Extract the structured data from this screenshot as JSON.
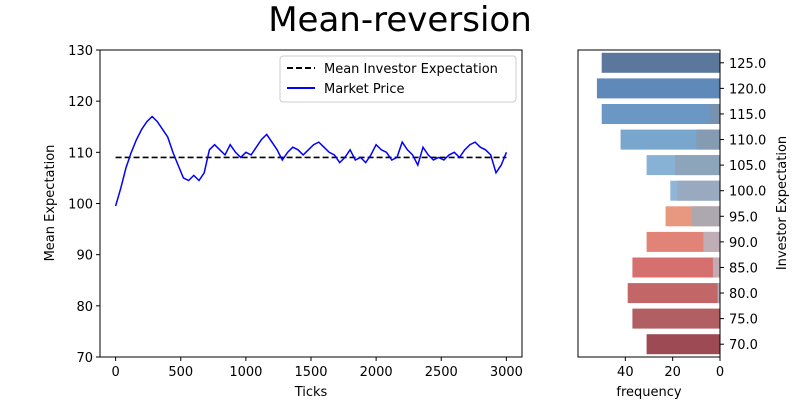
{
  "title": "Mean-reversion",
  "chart_data": [
    {
      "type": "line",
      "xlabel": "Ticks",
      "ylabel": "Mean Expectation",
      "xlim": [
        -120,
        3120
      ],
      "ylim": [
        70,
        130
      ],
      "xticks": [
        0,
        500,
        1000,
        1500,
        2000,
        2500,
        3000
      ],
      "yticks": [
        70,
        80,
        90,
        100,
        110,
        120,
        130
      ],
      "grid": false,
      "legend_position": "upper right",
      "series": [
        {
          "name": "Mean Investor Expectation",
          "style": "dashed",
          "color": "#000000",
          "x": [
            0,
            3000
          ],
          "y": [
            109,
            109
          ]
        },
        {
          "name": "Market Price",
          "style": "solid",
          "color": "#0000ff",
          "x": [
            0,
            40,
            80,
            120,
            160,
            200,
            240,
            280,
            320,
            360,
            400,
            440,
            480,
            520,
            560,
            600,
            640,
            680,
            720,
            760,
            800,
            840,
            880,
            920,
            960,
            1000,
            1040,
            1080,
            1120,
            1160,
            1200,
            1240,
            1280,
            1320,
            1360,
            1400,
            1440,
            1480,
            1520,
            1560,
            1600,
            1640,
            1680,
            1720,
            1760,
            1800,
            1840,
            1880,
            1920,
            1960,
            2000,
            2040,
            2080,
            2120,
            2160,
            2200,
            2240,
            2280,
            2320,
            2360,
            2400,
            2440,
            2480,
            2520,
            2560,
            2600,
            2640,
            2680,
            2720,
            2760,
            2800,
            2840,
            2880,
            2920,
            2960,
            3000
          ],
          "y": [
            99.5,
            103,
            107,
            110,
            112.5,
            114.5,
            116,
            117,
            116,
            114.5,
            113,
            110,
            107.5,
            105,
            104.5,
            105.5,
            104.5,
            106,
            110.5,
            111.5,
            110.5,
            109.5,
            111.5,
            110,
            109,
            110,
            109.5,
            111,
            112.5,
            113.5,
            112,
            110.5,
            108.5,
            110,
            111,
            110.5,
            109.5,
            110.5,
            111.5,
            112,
            111,
            110,
            109.5,
            108,
            109,
            110.5,
            108.5,
            109,
            108,
            109.5,
            111.5,
            110.5,
            110,
            108.5,
            109,
            112,
            110.5,
            109.5,
            107.5,
            111,
            109.5,
            108.5,
            109,
            108.5,
            109.5,
            110,
            109,
            110.5,
            111.5,
            112,
            111,
            110.5,
            109.5,
            106,
            107.5,
            110
          ]
        }
      ]
    },
    {
      "type": "bar",
      "orientation": "horizontal",
      "xlabel": "frequency",
      "ylabel": "Investor Expectation",
      "xlim": [
        60,
        0
      ],
      "xticks": [
        40,
        20,
        0
      ],
      "categories": [
        "70.0",
        "75.0",
        "80.0",
        "85.0",
        "90.0",
        "95.0",
        "100.0",
        "105.0",
        "110.0",
        "115.0",
        "120.0",
        "125.0"
      ],
      "series": [
        {
          "values": [
            31,
            37,
            39,
            37,
            31,
            23,
            21,
            31,
            42,
            50,
            52,
            50
          ],
          "colors": [
            "#9e4a55",
            "#b15f63",
            "#c26668",
            "#d6706e",
            "#e28378",
            "#e8987f",
            "#8fb6d9",
            "#87b2d6",
            "#79a6cd",
            "#6a97c4",
            "#5f89b8",
            "#5c779c"
          ]
        },
        {
          "values": [
            0,
            0,
            1,
            3,
            7,
            12,
            18,
            19,
            10,
            4,
            0,
            0
          ],
          "colors": [
            "#b3b8c4",
            "#b3b8c4",
            "#b3b8c4",
            "#bfb4bf",
            "#b8b6bf",
            "#a2a9b8",
            "#9aa7bb",
            "#8ea2b5",
            "#8799ad",
            "#7b8fa8",
            "#7b8fa8",
            "#7b8fa8"
          ]
        }
      ]
    }
  ]
}
